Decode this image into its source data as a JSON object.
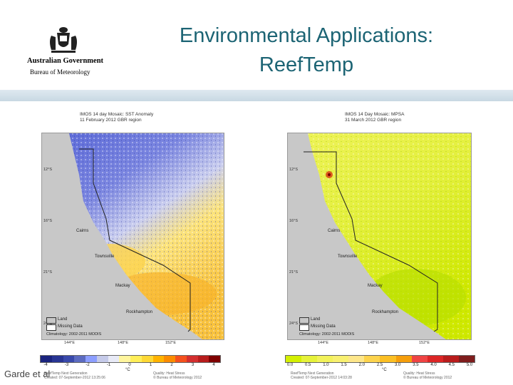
{
  "header": {
    "org_name": "Australian Government",
    "bureau_name": "Bureau of Meteorology",
    "title_line1": "Environmental Applications:",
    "title_line2": "ReefTemp"
  },
  "maps": [
    {
      "caption_line1": "IMOS 14 day Mosaic: SST Anomaly",
      "caption_line2": "11 February 2012   GBR region",
      "lat_labels": [
        "12°S",
        "16°S",
        "21°S",
        "24°S"
      ],
      "lon_labels": [
        "144°E",
        "148°E",
        "152°E"
      ],
      "places": [
        "Cairns",
        "Townsville",
        "Mackay",
        "Rockhampton"
      ],
      "legend_land": "Land",
      "legend_missing": "Missing Data",
      "climatology": "Climatology: 2002-2011 MODIS",
      "colorbar_labels": [
        "-4",
        "-3",
        "-2",
        "-1",
        "0",
        "1",
        "2",
        "3",
        "4"
      ],
      "colorbar_colors": [
        "#1a237e",
        "#283593",
        "#3949ab",
        "#5c6bc0",
        "#8c9eff",
        "#c5cae9",
        "#e8eaf6",
        "#fff59d",
        "#ffee58",
        "#fdd835",
        "#ffb300",
        "#fb8c00",
        "#f4511e",
        "#d32f2f",
        "#b71c1c",
        "#7f0000"
      ],
      "unit": "°C",
      "footer_left1": "ReefTemp Next Generation",
      "footer_left2": "Created: 07-September-2012  13:25:06",
      "footer_right1": "Quality: Heat Stress",
      "footer_right2": "© Bureau of Meteorology 2012"
    },
    {
      "caption_line1": "IMOS 14 Day Mosaic: MPSA",
      "caption_line2": "31 March 2012   GBR region",
      "lat_labels": [
        "12°S",
        "16°S",
        "21°S",
        "24°S"
      ],
      "lon_labels": [
        "144°E",
        "148°E",
        "152°E"
      ],
      "places": [
        "Cairns",
        "Townsville",
        "Mackay",
        "Rockhampton"
      ],
      "legend_land": "Land",
      "legend_missing": "Missing Data",
      "climatology": "Climatology: 2002-2011 MODIS",
      "colorbar_labels": [
        "0.0",
        "0.5",
        "1.0",
        "1.5",
        "2.0",
        "2.5",
        "3.0",
        "3.5",
        "4.0",
        "4.5",
        "5.0"
      ],
      "colorbar_colors": [
        "#d4f000",
        "#e6f23a",
        "#f2f25a",
        "#f8f070",
        "#fde68a",
        "#fcd34d",
        "#fbbf24",
        "#f59e0b",
        "#ef4444",
        "#dc2626",
        "#b91c1c",
        "#7f1d1d"
      ],
      "unit": "°C",
      "footer_left1": "ReefTemp Next Generation",
      "footer_left2": "Created: 07-September-2012  14:03:28",
      "footer_right1": "Quality: Heat Stress",
      "footer_right2": "© Bureau of Meteorology 2012"
    }
  ],
  "attribution": "Garde et al"
}
